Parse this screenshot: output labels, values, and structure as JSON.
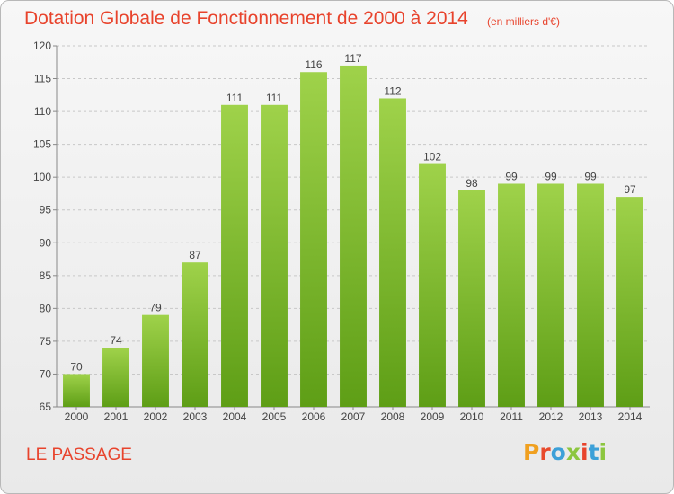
{
  "header": {
    "title": "Dotation Globale de Fonctionnement de 2000 à 2014",
    "unit_note": "(en milliers d'€)"
  },
  "footer": {
    "commune": "LE PASSAGE",
    "logo_text": "Proxiti",
    "logo_colors": [
      "#f0a020",
      "#e84a2c",
      "#3ca0d8",
      "#8cc63f",
      "#e8432c",
      "#3ca0d8",
      "#8cc63f"
    ]
  },
  "chart_data": {
    "type": "bar",
    "title": "Dotation Globale de Fonctionnement de 2000 à 2014",
    "subtitle": "(en milliers d'€)",
    "xlabel": "",
    "ylabel": "",
    "categories": [
      "2000",
      "2001",
      "2002",
      "2003",
      "2004",
      "2005",
      "2006",
      "2007",
      "2008",
      "2009",
      "2010",
      "2011",
      "2012",
      "2013",
      "2014"
    ],
    "values": [
      70,
      74,
      79,
      87,
      111,
      111,
      116,
      117,
      112,
      102,
      98,
      99,
      99,
      99,
      97
    ],
    "ylim": [
      65,
      120
    ],
    "yticks": [
      65,
      70,
      75,
      80,
      85,
      90,
      95,
      100,
      105,
      110,
      115,
      120
    ],
    "grid": true,
    "bar_color": "#7fbf2a",
    "title_color": "#e8432c"
  }
}
